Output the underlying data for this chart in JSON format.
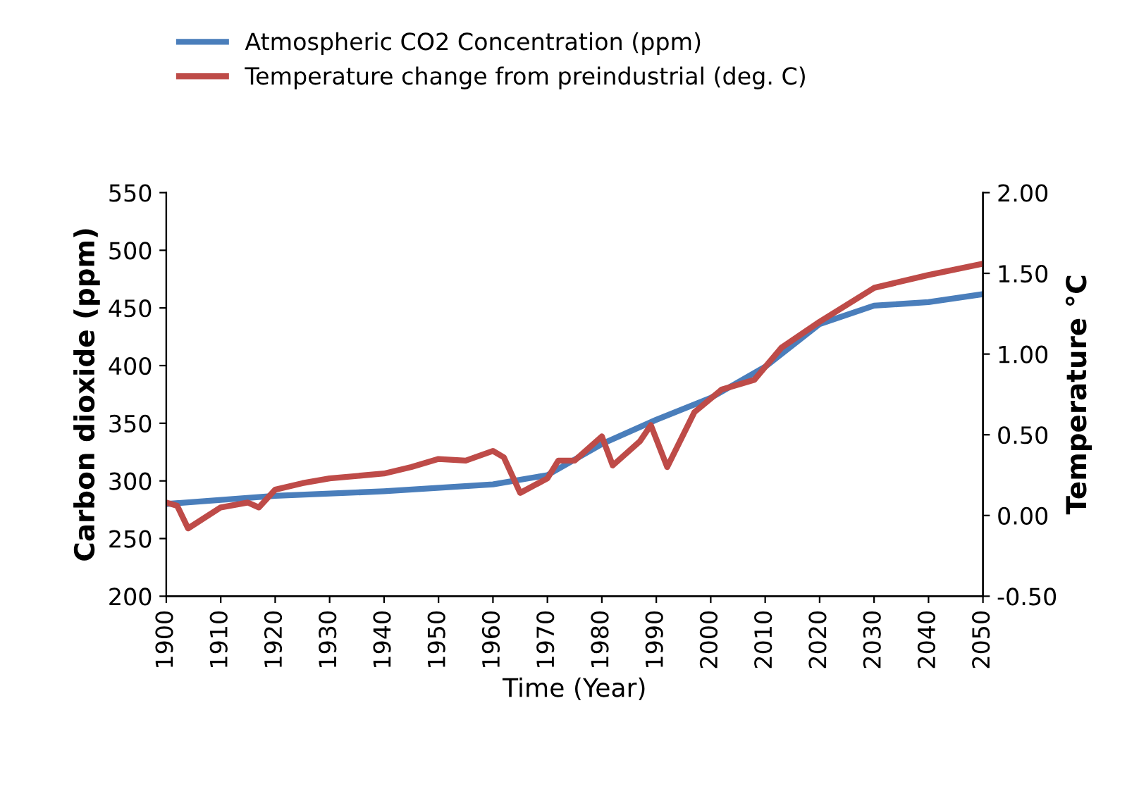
{
  "chart_data": {
    "type": "line",
    "xlabel": "Time (Year)",
    "ylabel": "Carbon dioxide (ppm)",
    "y2label": "Temperature °C",
    "xlim": [
      1900,
      2050
    ],
    "xticks": [
      1900,
      1910,
      1920,
      1930,
      1940,
      1950,
      1960,
      1970,
      1980,
      1990,
      2000,
      2010,
      2020,
      2030,
      2040,
      2050
    ],
    "ylim": [
      200,
      550
    ],
    "yticks": [
      200,
      250,
      300,
      350,
      400,
      450,
      500,
      550
    ],
    "y2lim": [
      -0.5,
      2.0
    ],
    "y2ticks": [
      {
        "value": -0.5,
        "label": "-0.50"
      },
      {
        "value": 0,
        "label": "0.00"
      },
      {
        "value": 0.5,
        "label": "0.50"
      },
      {
        "value": 1.0,
        "label": "1.00"
      },
      {
        "value": 1.5,
        "label": "1.50"
      },
      {
        "value": 2.0,
        "label": "2.00"
      }
    ],
    "grid": false,
    "legend": "top",
    "marker": "none",
    "line_style": "solid",
    "series": [
      {
        "name": "Atmospheric CO2 Concentration (ppm)",
        "color": "#4a7ebb",
        "x": [
          1900,
          1920,
          1940,
          1960,
          1970,
          1980,
          1990,
          2000,
          2010,
          2020,
          2030,
          2040,
          2050
        ],
        "values": [
          280,
          287,
          291,
          297,
          305,
          332,
          353,
          372,
          399,
          436,
          452,
          455,
          462
        ]
      },
      {
        "name": "Temperature change from preindustrial (deg. C)",
        "color": "#be4b48",
        "axis": "y2",
        "x": [
          1900,
          1902,
          1904,
          1910,
          1915,
          1917,
          1920,
          1925,
          1930,
          1940,
          1945,
          1950,
          1955,
          1960,
          1962,
          1965,
          1970,
          1972,
          1975,
          1977,
          1980,
          1982,
          1987,
          1989,
          1992,
          1997,
          2002,
          2008,
          2013,
          2020,
          2030,
          2040,
          2050
        ],
        "values": [
          0.08,
          0.06,
          -0.08,
          0.05,
          0.08,
          0.05,
          0.16,
          0.2,
          0.23,
          0.26,
          0.3,
          0.35,
          0.34,
          0.4,
          0.36,
          0.14,
          0.23,
          0.34,
          0.34,
          0.4,
          0.49,
          0.31,
          0.46,
          0.56,
          0.3,
          0.64,
          0.78,
          0.84,
          1.04,
          1.2,
          1.41,
          1.49,
          1.56
        ]
      }
    ]
  }
}
